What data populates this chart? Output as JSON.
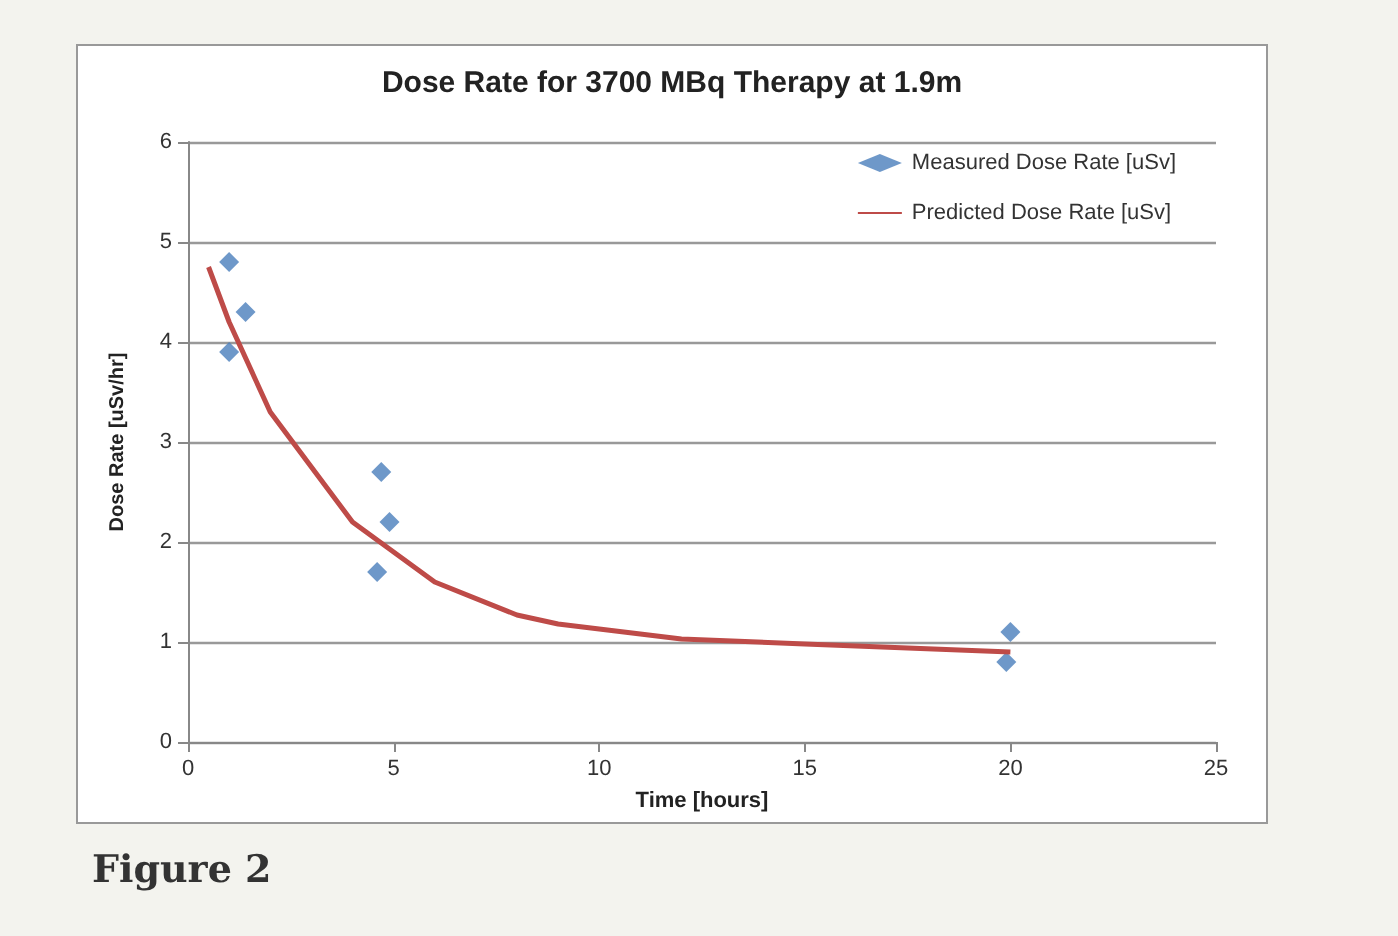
{
  "chart_data": {
    "type": "scatter",
    "title": "Dose Rate for 3700 MBq Therapy at 1.9m",
    "xlabel": "Time [hours]",
    "ylabel": "Dose Rate [uSv/hr]",
    "xlim": [
      0,
      25
    ],
    "xticks": [
      0,
      5,
      10,
      15,
      20,
      25
    ],
    "ylim": [
      0,
      6
    ],
    "yticks": [
      0,
      1,
      2,
      3,
      4,
      5,
      6
    ],
    "grid": "y",
    "legend": "top right",
    "marker": "diamond",
    "series": [
      {
        "name": "Measured Dose Rate [uSv]",
        "color": "#4a7ebb",
        "x": [
          1,
          1,
          1.4,
          4.7,
          4.9,
          4.6,
          19.9,
          20
        ],
        "values": [
          4.8,
          3.9,
          4.3,
          2.7,
          2.2,
          1.7,
          0.8,
          1.1
        ]
      },
      {
        "name": "Predicted Dose Rate [uSv]",
        "type": "line",
        "color": "#be4b48",
        "marker": "none",
        "x": [
          0.5,
          1,
          2,
          4,
          6,
          8,
          9,
          12,
          15,
          20
        ],
        "values": [
          4.75,
          4.2,
          3.3,
          2.2,
          1.6,
          1.27,
          1.18,
          1.03,
          0.98,
          0.9
        ]
      }
    ],
    "annotations": [
      "Figure 2"
    ]
  }
}
